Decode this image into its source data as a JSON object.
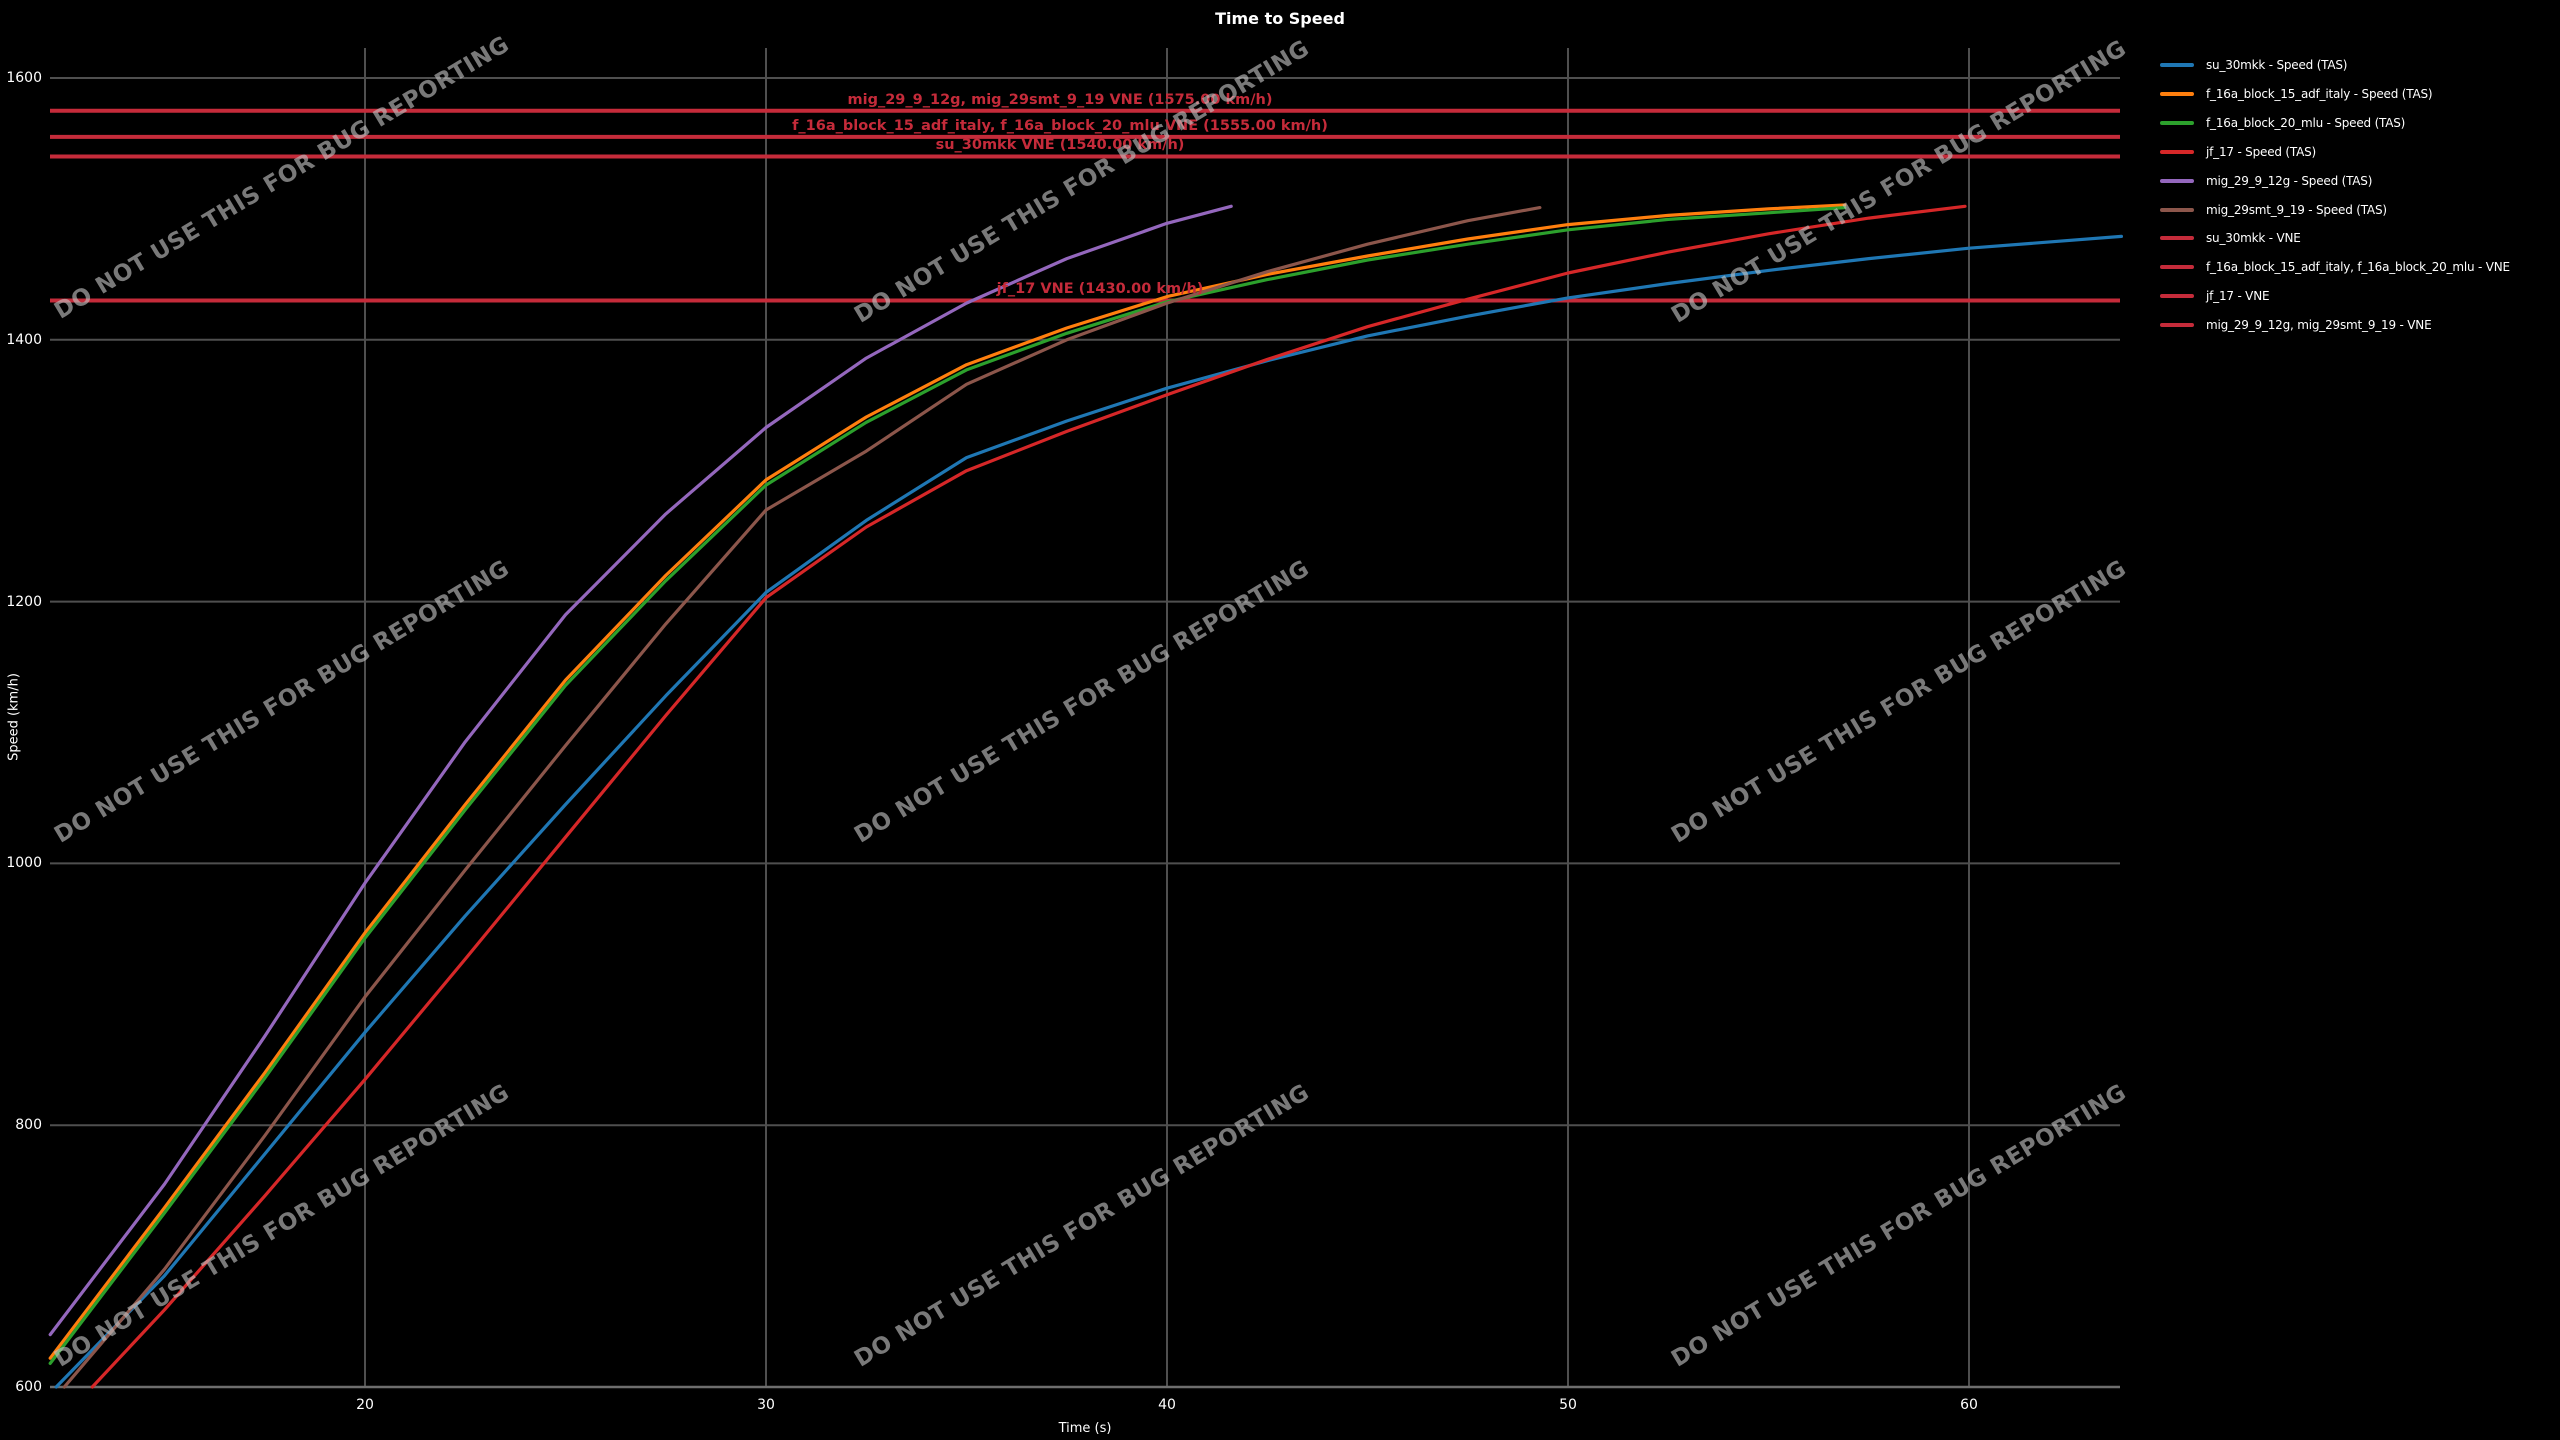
{
  "title": "Time to Speed",
  "watermark": {
    "text": "DO NOT USE THIS FOR BUG REPORTING"
  },
  "colors": {
    "background": "#000000",
    "grid": "#4f4f4f",
    "axis": "#6e6e6e",
    "text": "#ffffff",
    "vne": "#c52b3a"
  },
  "chart_data": {
    "type": "line",
    "title": "Time to Speed",
    "xlabel": "Time (s)",
    "ylabel": "Speed (km/h)",
    "xlim": [
      12.15,
      63.8
    ],
    "ylim": [
      600,
      1623
    ],
    "grid": true,
    "legend_position": "right",
    "x_ticks": [
      20,
      30,
      40,
      50,
      60
    ],
    "y_ticks": [
      600,
      800,
      1000,
      1200,
      1400,
      1600
    ],
    "x_tick_labels": [
      "20",
      "30",
      "40",
      "50",
      "60"
    ],
    "y_tick_labels": [
      "600",
      "800",
      "1000",
      "1200",
      "1400",
      "1600"
    ],
    "series": [
      {
        "name": "su_30mkk - Speed (TAS)",
        "color": "#1f77b4",
        "points": [
          [
            12.3,
            600
          ],
          [
            15,
            685
          ],
          [
            17.5,
            778
          ],
          [
            20,
            871
          ],
          [
            22.5,
            960
          ],
          [
            25,
            1045
          ],
          [
            27.5,
            1128
          ],
          [
            30,
            1207
          ],
          [
            32.5,
            1262
          ],
          [
            35,
            1310
          ],
          [
            37.5,
            1338
          ],
          [
            40,
            1363
          ],
          [
            42.5,
            1384
          ],
          [
            45,
            1403
          ],
          [
            47.5,
            1418
          ],
          [
            50,
            1432
          ],
          [
            52.5,
            1443
          ],
          [
            55,
            1453
          ],
          [
            57.5,
            1462
          ],
          [
            60,
            1470
          ],
          [
            63.8,
            1479
          ]
        ]
      },
      {
        "name": "f_16a_block_15_adf_italy - Speed (TAS)",
        "color": "#ff7f0e",
        "points": [
          [
            12.15,
            622
          ],
          [
            15,
            737
          ],
          [
            17.5,
            840
          ],
          [
            20,
            947
          ],
          [
            22.5,
            1045
          ],
          [
            25,
            1140
          ],
          [
            27.5,
            1220
          ],
          [
            30,
            1293
          ],
          [
            32.5,
            1341
          ],
          [
            35,
            1381
          ],
          [
            37.5,
            1409
          ],
          [
            40,
            1433
          ],
          [
            42.5,
            1450
          ],
          [
            45,
            1464
          ],
          [
            47.5,
            1477
          ],
          [
            50,
            1488
          ],
          [
            52.5,
            1495
          ],
          [
            55,
            1500
          ],
          [
            56.9,
            1503
          ]
        ]
      },
      {
        "name": "f_16a_block_20_mlu - Speed (TAS)",
        "color": "#2ca02c",
        "points": [
          [
            12.15,
            618
          ],
          [
            15,
            733
          ],
          [
            17.5,
            836
          ],
          [
            20,
            943
          ],
          [
            22.5,
            1041
          ],
          [
            25,
            1136
          ],
          [
            27.5,
            1216
          ],
          [
            30,
            1289
          ],
          [
            32.5,
            1337
          ],
          [
            35,
            1377
          ],
          [
            37.5,
            1405
          ],
          [
            40,
            1429
          ],
          [
            42.5,
            1446
          ],
          [
            45,
            1461
          ],
          [
            47.5,
            1473
          ],
          [
            50,
            1484
          ],
          [
            52.5,
            1492
          ],
          [
            55,
            1497
          ],
          [
            56.9,
            1501
          ]
        ]
      },
      {
        "name": "jf_17 - Speed (TAS)",
        "color": "#d62728",
        "points": [
          [
            13.2,
            600
          ],
          [
            15,
            659
          ],
          [
            17.5,
            746
          ],
          [
            20,
            835
          ],
          [
            22.5,
            927
          ],
          [
            25,
            1020
          ],
          [
            27.5,
            1113
          ],
          [
            30,
            1203
          ],
          [
            32.5,
            1257
          ],
          [
            35,
            1300
          ],
          [
            37.5,
            1330
          ],
          [
            40,
            1358
          ],
          [
            42.5,
            1385
          ],
          [
            45,
            1410
          ],
          [
            47.5,
            1431
          ],
          [
            50,
            1451
          ],
          [
            52.5,
            1467
          ],
          [
            55,
            1481
          ],
          [
            57.5,
            1493
          ],
          [
            59.9,
            1502
          ]
        ]
      },
      {
        "name": "mig_29_9_12g - Speed (TAS)",
        "color": "#9467bd",
        "points": [
          [
            12.15,
            640
          ],
          [
            15,
            755
          ],
          [
            17.5,
            868
          ],
          [
            20,
            985
          ],
          [
            22.5,
            1093
          ],
          [
            25,
            1190
          ],
          [
            27.5,
            1267
          ],
          [
            30,
            1333
          ],
          [
            32.5,
            1386
          ],
          [
            35,
            1428
          ],
          [
            37.5,
            1462
          ],
          [
            40,
            1489
          ],
          [
            41.6,
            1502
          ]
        ]
      },
      {
        "name": "mig_29smt_9_19 - Speed (TAS)",
        "color": "#8c564b",
        "points": [
          [
            12.5,
            600
          ],
          [
            15,
            690
          ],
          [
            17.5,
            792
          ],
          [
            20,
            898
          ],
          [
            22.5,
            995
          ],
          [
            25,
            1090
          ],
          [
            27.5,
            1183
          ],
          [
            30,
            1270
          ],
          [
            32.5,
            1315
          ],
          [
            35,
            1366
          ],
          [
            37.5,
            1400
          ],
          [
            40,
            1428
          ],
          [
            42.5,
            1452
          ],
          [
            45,
            1473
          ],
          [
            47.5,
            1491
          ],
          [
            49.3,
            1501
          ]
        ]
      }
    ],
    "vne_lines": [
      {
        "label": "mig_29_9_12g, mig_29smt_9_19 VNE (1575.00 km/h)",
        "value": 1575,
        "color": "#c52b3a"
      },
      {
        "label": "f_16a_block_15_adf_italy, f_16a_block_20_mlu VNE (1555.00 km/h)",
        "value": 1555,
        "color": "#c52b3a"
      },
      {
        "label": "su_30mkk VNE (1540.00 km/h)",
        "value": 1540,
        "color": "#c52b3a"
      },
      {
        "label": "jf_17 VNE (1430.00 km/h)",
        "value": 1430,
        "color": "#c52b3a"
      }
    ]
  },
  "legend": {
    "items": [
      {
        "label": "su_30mkk - Speed (TAS)",
        "color": "#1f77b4"
      },
      {
        "label": "f_16a_block_15_adf_italy - Speed (TAS)",
        "color": "#ff7f0e"
      },
      {
        "label": "f_16a_block_20_mlu - Speed (TAS)",
        "color": "#2ca02c"
      },
      {
        "label": "jf_17 - Speed (TAS)",
        "color": "#d62728"
      },
      {
        "label": "mig_29_9_12g - Speed (TAS)",
        "color": "#9467bd"
      },
      {
        "label": "mig_29smt_9_19 - Speed (TAS)",
        "color": "#8c564b"
      },
      {
        "label": "su_30mkk - VNE",
        "color": "#c52b3a"
      },
      {
        "label": "f_16a_block_15_adf_italy, f_16a_block_20_mlu - VNE",
        "color": "#c52b3a"
      },
      {
        "label": "jf_17 - VNE",
        "color": "#c52b3a"
      },
      {
        "label": "mig_29_9_12g, mig_29smt_9_19 - VNE",
        "color": "#c52b3a"
      }
    ]
  }
}
